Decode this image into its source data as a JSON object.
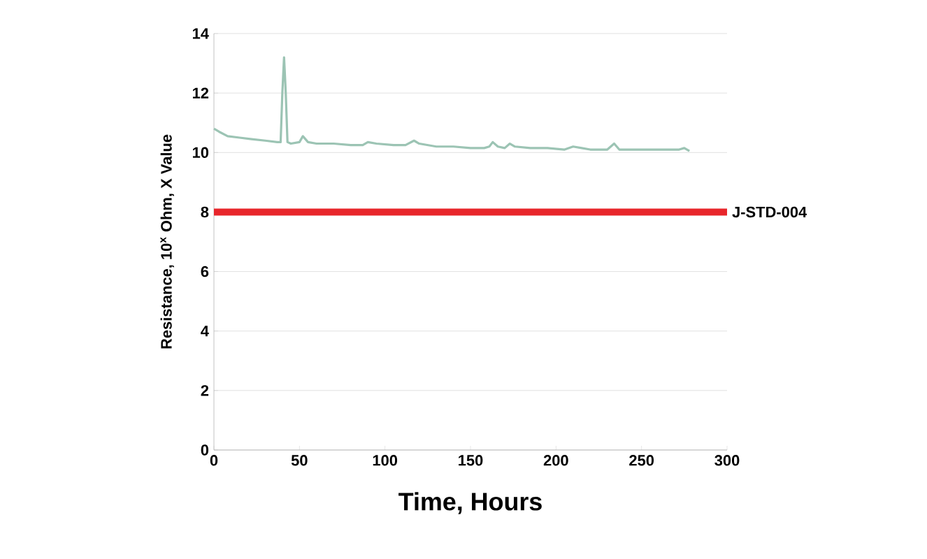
{
  "chart_data": {
    "type": "line",
    "xlabel": "Time, Hours",
    "ylabel": "Resistance, 10$^{x}$ Ohm, X Value",
    "xlim": [
      0,
      300
    ],
    "ylim": [
      0,
      14
    ],
    "xticks": [
      0,
      50,
      100,
      150,
      200,
      250,
      300
    ],
    "yticks": [
      0,
      2,
      4,
      6,
      8,
      10,
      12,
      14
    ],
    "grid": "y",
    "marker": "none",
    "line_style": "solid",
    "series": [
      {
        "color": "#9cc4b4",
        "x": [
          0,
          3,
          8,
          15,
          22,
          30,
          37,
          39,
          40,
          41,
          42,
          43,
          45,
          50,
          52,
          55,
          60,
          70,
          80,
          87,
          90,
          95,
          105,
          112,
          117,
          120,
          130,
          140,
          150,
          158,
          161,
          163,
          166,
          170,
          173,
          176,
          185,
          195,
          205,
          210,
          215,
          220,
          230,
          234,
          237,
          245,
          255,
          265,
          272,
          275,
          278
        ],
        "values": [
          10.8,
          10.7,
          10.55,
          10.5,
          10.45,
          10.4,
          10.35,
          10.35,
          12.0,
          13.2,
          12.0,
          10.35,
          10.3,
          10.35,
          10.55,
          10.35,
          10.3,
          10.3,
          10.25,
          10.25,
          10.35,
          10.3,
          10.25,
          10.25,
          10.4,
          10.3,
          10.2,
          10.2,
          10.15,
          10.15,
          10.2,
          10.35,
          10.2,
          10.15,
          10.3,
          10.2,
          10.15,
          10.15,
          10.1,
          10.2,
          10.15,
          10.1,
          10.1,
          10.3,
          10.1,
          10.1,
          10.1,
          10.1,
          10.1,
          10.15,
          10.05
        ]
      }
    ],
    "ref_lines": [
      {
        "axis": "y",
        "value": 8,
        "label": "J-STD-004",
        "color": "#e8262b"
      }
    ]
  }
}
